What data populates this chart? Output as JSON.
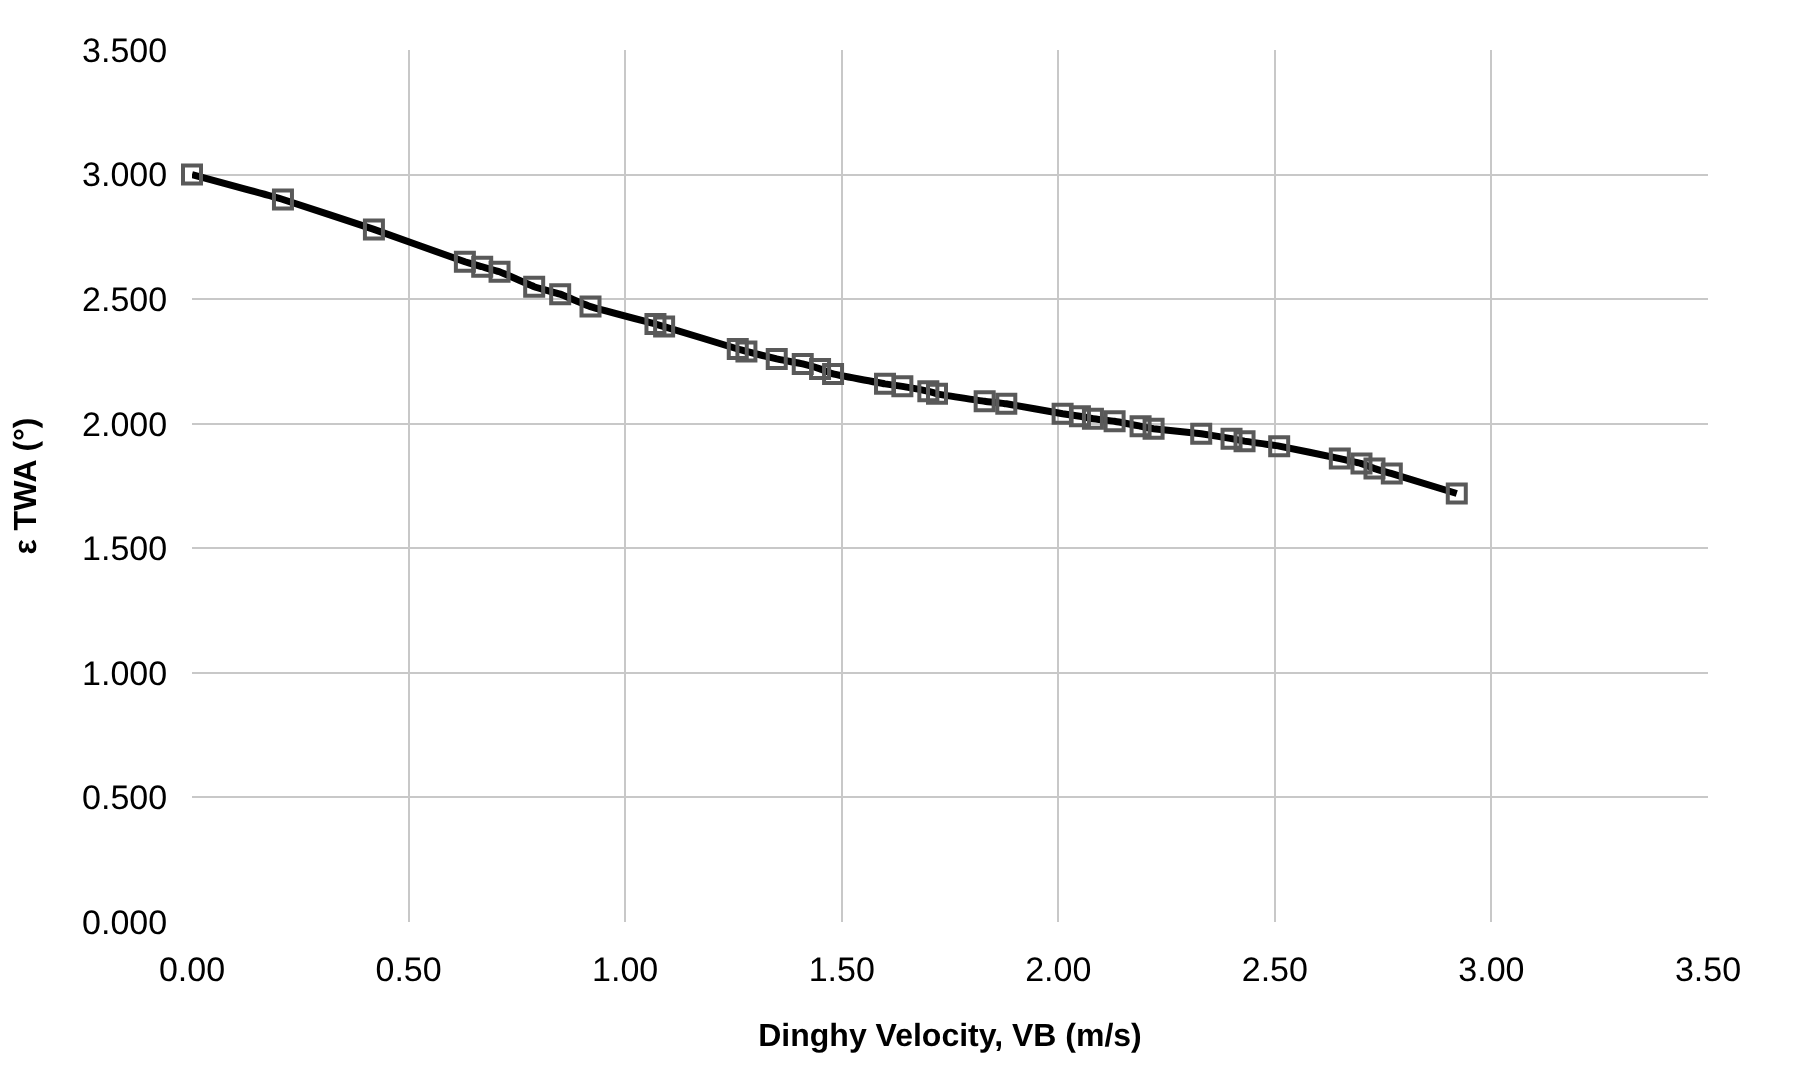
{
  "chart_data": {
    "type": "line",
    "xlabel": "Dinghy Velocity, VB (m/s)",
    "ylabel": "ε TWA (°)",
    "xlim": [
      0,
      3.5
    ],
    "xticks": [
      {
        "value": 0,
        "label": "0.00"
      },
      {
        "value": 0.5,
        "label": "0.50"
      },
      {
        "value": 1,
        "label": "1.00"
      },
      {
        "value": 1.5,
        "label": "1.50"
      },
      {
        "value": 2,
        "label": "2.00"
      },
      {
        "value": 2.5,
        "label": "2.50"
      },
      {
        "value": 3,
        "label": "3.00"
      },
      {
        "value": 3.5,
        "label": "3.50"
      }
    ],
    "ylim": [
      0,
      3.5
    ],
    "yticks": [
      {
        "value": 0,
        "label": "0.000"
      },
      {
        "value": 0.5,
        "label": "0.500"
      },
      {
        "value": 1,
        "label": "1.000"
      },
      {
        "value": 1.5,
        "label": "1.500"
      },
      {
        "value": 2,
        "label": "2.000"
      },
      {
        "value": 2.5,
        "label": "2.500"
      },
      {
        "value": 3,
        "label": "3.000"
      },
      {
        "value": 3.5,
        "label": "3.500"
      }
    ],
    "grid": true,
    "marker": "square",
    "line_style": "solid",
    "series": [
      {
        "color": "#000000",
        "x": [
          0.0,
          0.21,
          0.42,
          0.63,
          0.67,
          0.71,
          0.79,
          0.85,
          0.92,
          1.07,
          1.09,
          1.26,
          1.28,
          1.35,
          1.41,
          1.45,
          1.48,
          1.6,
          1.64,
          1.7,
          1.72,
          1.83,
          1.88,
          2.01,
          2.05,
          2.08,
          2.13,
          2.19,
          2.22,
          2.33,
          2.4,
          2.43,
          2.51,
          2.65,
          2.7,
          2.73,
          2.77,
          2.92
        ],
        "values": [
          3.0,
          2.9,
          2.78,
          2.65,
          2.63,
          2.61,
          2.55,
          2.52,
          2.47,
          2.4,
          2.39,
          2.3,
          2.29,
          2.26,
          2.24,
          2.22,
          2.2,
          2.16,
          2.15,
          2.13,
          2.12,
          2.09,
          2.08,
          2.04,
          2.03,
          2.02,
          2.01,
          1.99,
          1.98,
          1.96,
          1.94,
          1.93,
          1.91,
          1.86,
          1.84,
          1.82,
          1.8,
          1.72
        ]
      }
    ]
  }
}
